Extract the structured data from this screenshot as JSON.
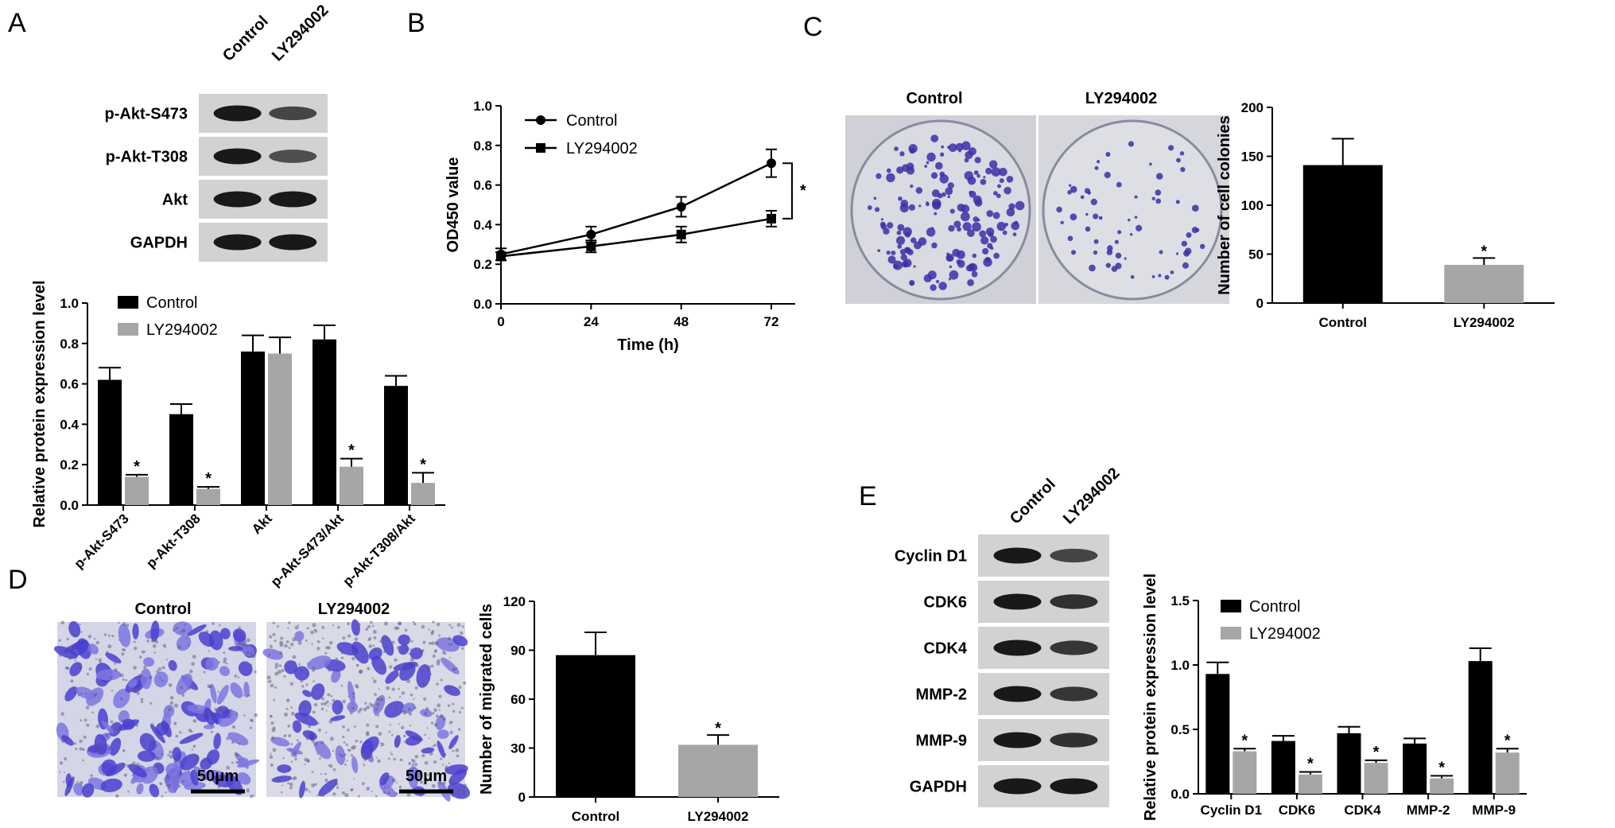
{
  "panels": {
    "A": {
      "letter": "A"
    },
    "B": {
      "letter": "B"
    },
    "C": {
      "letter": "C"
    },
    "D": {
      "letter": "D"
    },
    "E": {
      "letter": "E"
    }
  },
  "blots": {
    "A": {
      "lanes": [
        "Control",
        "LY294002"
      ],
      "rows": [
        "p-Akt-S473",
        "p-Akt-T308",
        "Akt",
        "GAPDH"
      ]
    },
    "E": {
      "lanes": [
        "Control",
        "LY294002"
      ],
      "rows": [
        "Cyclin D1",
        "CDK6",
        "CDK4",
        "MMP-2",
        "MMP-9",
        "GAPDH"
      ]
    }
  },
  "images": {
    "C": {
      "labels": [
        "Control",
        "LY294002"
      ]
    },
    "D": {
      "labels": [
        "Control",
        "LY294002"
      ],
      "scale_bar": "50μm"
    }
  },
  "colors": {
    "control": "#000000",
    "ly294002": "#a6a6a6",
    "stain": "#3b2fa8"
  },
  "chart_data": [
    {
      "id": "A",
      "type": "bar",
      "categories": [
        "p-Akt-S473",
        "p-Akt-T308",
        "Akt",
        "p-Akt-S473/Akt",
        "p-Akt-T308/Akt"
      ],
      "series": [
        {
          "name": "Control",
          "values": [
            0.62,
            0.45,
            0.76,
            0.82,
            0.59
          ],
          "errors": [
            0.06,
            0.05,
            0.08,
            0.07,
            0.05
          ]
        },
        {
          "name": "LY294002",
          "values": [
            0.14,
            0.08,
            0.75,
            0.19,
            0.11
          ],
          "errors": [
            0.01,
            0.01,
            0.08,
            0.04,
            0.05
          ]
        }
      ],
      "significance": [
        "*",
        "*",
        "",
        "*",
        "*"
      ],
      "ylabel": "Relative protein expression level",
      "ylim": [
        0,
        1.0
      ],
      "yticks": [
        "0.0",
        "0.2",
        "0.4",
        "0.6",
        "0.8",
        "1.0"
      ],
      "legend": "top-left"
    },
    {
      "id": "B",
      "type": "line",
      "x": [
        0,
        24,
        48,
        72
      ],
      "xticks": [
        "0",
        "24",
        "48",
        "72"
      ],
      "series": [
        {
          "name": "Control",
          "marker": "circle",
          "values": [
            0.25,
            0.35,
            0.49,
            0.71
          ],
          "errors": [
            0.03,
            0.04,
            0.05,
            0.07
          ]
        },
        {
          "name": "LY294002",
          "marker": "square",
          "values": [
            0.24,
            0.29,
            0.35,
            0.43
          ],
          "errors": [
            0.02,
            0.03,
            0.04,
            0.04
          ]
        }
      ],
      "significance": "*",
      "xlabel": "Time (h)",
      "ylabel": "OD450 value",
      "ylim": [
        0,
        1.0
      ],
      "yticks": [
        "0.0",
        "0.2",
        "0.4",
        "0.6",
        "0.8",
        "1.0"
      ],
      "legend": "top-left"
    },
    {
      "id": "C",
      "type": "bar",
      "categories": [
        "Control",
        "LY294002"
      ],
      "values": [
        141,
        39
      ],
      "errors": [
        27,
        7
      ],
      "significance": [
        "",
        "*"
      ],
      "ylabel": "Number of cell colonies",
      "ylim": [
        0,
        200
      ],
      "yticks": [
        "0",
        "50",
        "100",
        "150",
        "200"
      ]
    },
    {
      "id": "D",
      "type": "bar",
      "categories": [
        "Control",
        "LY294002"
      ],
      "values": [
        87,
        32
      ],
      "errors": [
        14,
        6
      ],
      "significance": [
        "",
        "*"
      ],
      "ylabel": "Number of migrated cells",
      "ylim": [
        0,
        120
      ],
      "yticks": [
        "0",
        "30",
        "60",
        "90",
        "120"
      ]
    },
    {
      "id": "E",
      "type": "bar",
      "categories": [
        "Cyclin D1",
        "CDK6",
        "CDK4",
        "MMP-2",
        "MMP-9"
      ],
      "series": [
        {
          "name": "Control",
          "values": [
            0.93,
            0.41,
            0.47,
            0.39,
            1.03
          ],
          "errors": [
            0.09,
            0.04,
            0.05,
            0.04,
            0.1
          ]
        },
        {
          "name": "LY294002",
          "values": [
            0.33,
            0.15,
            0.24,
            0.12,
            0.32
          ],
          "errors": [
            0.02,
            0.02,
            0.02,
            0.02,
            0.03
          ]
        }
      ],
      "significance": [
        "*",
        "*",
        "*",
        "*",
        "*"
      ],
      "ylabel": "Relative protein expression level",
      "ylim": [
        0,
        1.5
      ],
      "yticks": [
        "0.0",
        "0.5",
        "1.0",
        "1.5"
      ],
      "legend": "top-left"
    }
  ]
}
